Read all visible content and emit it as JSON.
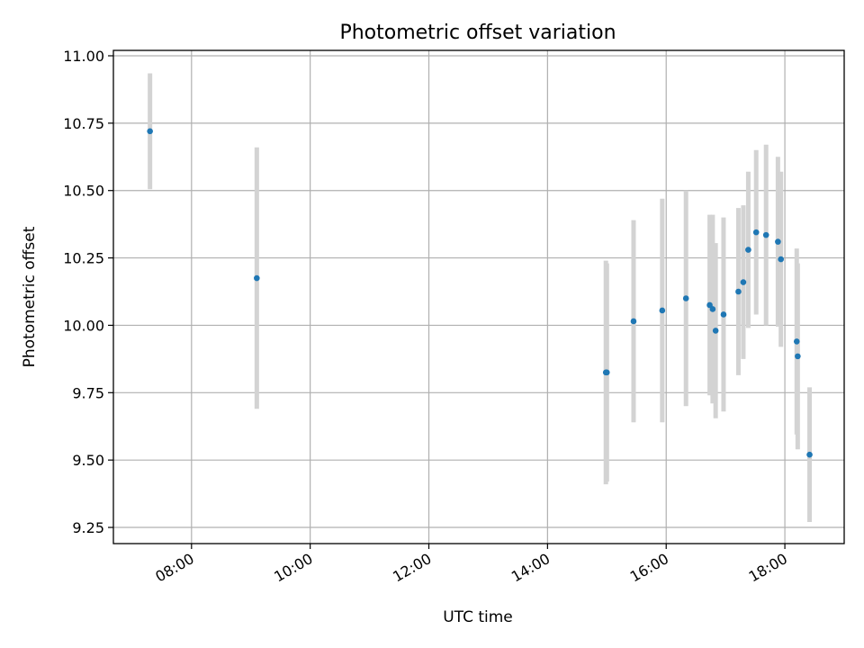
{
  "chart_data": {
    "type": "scatter",
    "title": "Photometric offset variation",
    "xlabel": "UTC time",
    "ylabel": "Photometric offset",
    "x_tick_labels": [
      "08:00",
      "10:00",
      "12:00",
      "14:00",
      "16:00",
      "18:00"
    ],
    "x_ticks": [
      "08:00",
      "10:00",
      "12:00",
      "14:00",
      "16:00",
      "18:00"
    ],
    "x_range": [
      "06:41",
      "19:00"
    ],
    "y_ticks": [
      9.25,
      9.5,
      9.75,
      10.0,
      10.25,
      10.5,
      10.75,
      11.0
    ],
    "y_tick_labels": [
      "9.25",
      "9.50",
      "9.75",
      "10.00",
      "10.25",
      "10.50",
      "10.75",
      "11.00"
    ],
    "ylim": [
      9.19,
      11.02
    ],
    "grid": true,
    "marker_color": "#1f77b4",
    "errorbar_color": "#d3d3d3",
    "series": [
      {
        "points": [
          {
            "x": "07:18",
            "y": 10.72,
            "err": 0.215
          },
          {
            "x": "09:06",
            "y": 10.175,
            "err": 0.485
          },
          {
            "x": "14:59",
            "y": 9.825,
            "err": 0.415
          },
          {
            "x": "15:00",
            "y": 9.825,
            "err": 0.405
          },
          {
            "x": "15:27",
            "y": 10.015,
            "err": 0.375
          },
          {
            "x": "15:56",
            "y": 10.055,
            "err": 0.415
          },
          {
            "x": "16:20",
            "y": 10.1,
            "err": 0.4
          },
          {
            "x": "16:44",
            "y": 10.075,
            "err": 0.335
          },
          {
            "x": "16:47",
            "y": 10.06,
            "err": 0.35
          },
          {
            "x": "16:50",
            "y": 9.98,
            "err": 0.325
          },
          {
            "x": "16:58",
            "y": 10.04,
            "err": 0.36
          },
          {
            "x": "17:13",
            "y": 10.125,
            "err": 0.31
          },
          {
            "x": "17:18",
            "y": 10.16,
            "err": 0.285
          },
          {
            "x": "17:23",
            "y": 10.28,
            "err": 0.29
          },
          {
            "x": "17:31",
            "y": 10.345,
            "err": 0.305
          },
          {
            "x": "17:41",
            "y": 10.335,
            "err": 0.335
          },
          {
            "x": "17:53",
            "y": 10.31,
            "err": 0.315
          },
          {
            "x": "17:56",
            "y": 10.245,
            "err": 0.325
          },
          {
            "x": "18:12",
            "y": 9.94,
            "err": 0.345
          },
          {
            "x": "18:13",
            "y": 9.885,
            "err": 0.345
          },
          {
            "x": "18:25",
            "y": 9.52,
            "err": 0.25
          }
        ]
      }
    ]
  }
}
